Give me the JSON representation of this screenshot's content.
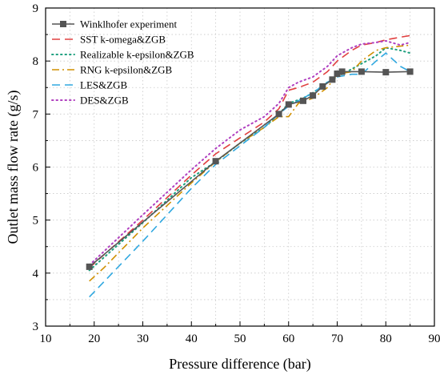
{
  "chart_data": {
    "type": "line",
    "title": "",
    "xlabel": "Pressure difference (bar)",
    "ylabel": "Outlet mass flow rate (g/s)",
    "xlim": [
      10,
      90
    ],
    "ylim": [
      3,
      9
    ],
    "xticks": [
      "10",
      "20",
      "30",
      "40",
      "50",
      "60",
      "70",
      "80",
      "90"
    ],
    "yticks": [
      "3",
      "4",
      "5",
      "6",
      "7",
      "8",
      "9"
    ],
    "grid": "dotted",
    "legend_position": "top-left",
    "series": [
      {
        "name": "Winklhofer experiment",
        "color": "#555555",
        "style": "solid-square-markers",
        "x": [
          19,
          45,
          58,
          60,
          63,
          65,
          67,
          69,
          70,
          71,
          75,
          80,
          85
        ],
        "y": [
          4.12,
          6.11,
          7.0,
          7.18,
          7.25,
          7.35,
          7.52,
          7.65,
          7.76,
          7.8,
          7.8,
          7.79,
          7.8
        ]
      },
      {
        "name": "SST k-omega&ZGB",
        "color": "#e04040",
        "style": "long-dash",
        "x": [
          19,
          30,
          40,
          45,
          50,
          55,
          58,
          60,
          62,
          65,
          68,
          70,
          73,
          75,
          78,
          80,
          83,
          85
        ],
        "y": [
          4.1,
          5.0,
          5.85,
          6.25,
          6.55,
          6.85,
          7.1,
          7.45,
          7.5,
          7.6,
          7.8,
          8.0,
          8.2,
          8.3,
          8.35,
          8.4,
          8.45,
          8.48
        ]
      },
      {
        "name": "Realizable k-epsilon&ZGB",
        "color": "#20a080",
        "style": "dotted",
        "x": [
          19,
          30,
          40,
          45,
          50,
          55,
          58,
          60,
          63,
          65,
          68,
          70,
          73,
          75,
          78,
          80,
          83,
          85
        ],
        "y": [
          4.05,
          4.95,
          5.8,
          6.1,
          6.45,
          6.75,
          7.0,
          7.2,
          7.3,
          7.4,
          7.6,
          7.7,
          7.85,
          7.95,
          8.1,
          8.25,
          8.2,
          8.15
        ]
      },
      {
        "name": "RNG k-epsilon&ZGB",
        "color": "#d09000",
        "style": "dash-dot",
        "x": [
          19,
          22,
          30,
          40,
          45,
          50,
          55,
          58,
          60,
          62,
          65,
          68,
          70,
          73,
          75,
          78,
          80,
          83,
          85
        ],
        "y": [
          3.85,
          4.1,
          4.85,
          5.7,
          6.1,
          6.45,
          6.75,
          6.95,
          6.95,
          7.2,
          7.3,
          7.5,
          7.75,
          7.8,
          8.0,
          8.2,
          8.25,
          8.28,
          8.3
        ]
      },
      {
        "name": "LES&ZGB",
        "color": "#30a8e0",
        "style": "long-dash",
        "x": [
          19,
          30,
          40,
          45,
          50,
          55,
          58,
          60,
          62,
          65,
          68,
          70,
          73,
          75,
          78,
          80,
          83,
          85
        ],
        "y": [
          3.55,
          4.6,
          5.6,
          6.05,
          6.4,
          6.75,
          7.0,
          7.15,
          7.25,
          7.4,
          7.6,
          7.7,
          7.75,
          7.75,
          8.0,
          8.15,
          7.9,
          7.8
        ]
      },
      {
        "name": "DES&ZGB",
        "color": "#b040c0",
        "style": "dotted",
        "x": [
          19,
          30,
          40,
          45,
          50,
          55,
          58,
          60,
          62,
          65,
          68,
          70,
          73,
          75,
          78,
          80,
          83,
          85
        ],
        "y": [
          4.15,
          5.1,
          5.95,
          6.35,
          6.7,
          6.95,
          7.2,
          7.5,
          7.6,
          7.7,
          7.9,
          8.1,
          8.25,
          8.32,
          8.35,
          8.38,
          8.3,
          8.35
        ]
      }
    ]
  }
}
